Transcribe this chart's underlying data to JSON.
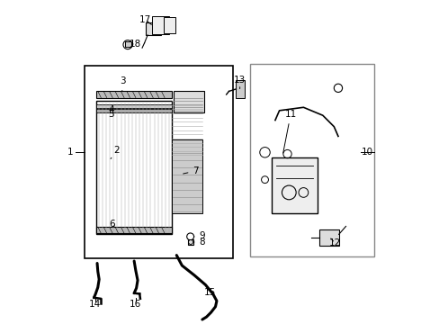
{
  "background_color": "#ffffff",
  "line_color": "#000000",
  "gray_color": "#888888",
  "light_gray": "#aaaaaa",
  "fs": 7.5
}
